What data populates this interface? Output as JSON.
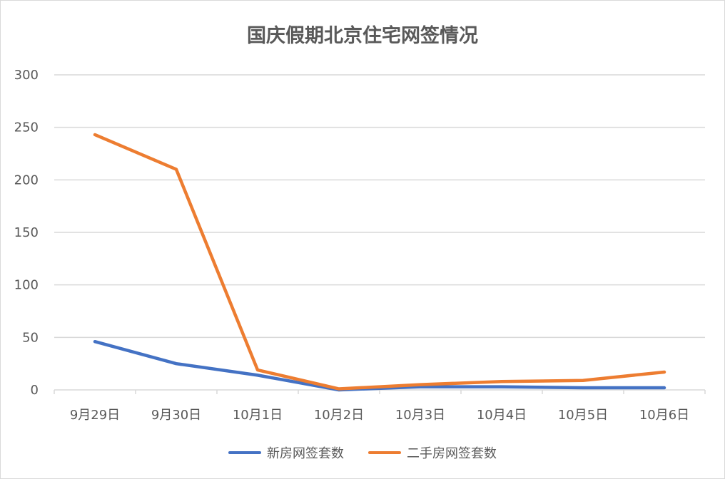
{
  "chart_data": {
    "type": "line",
    "title": "国庆假期北京住宅网签情况",
    "categories": [
      "9月29日",
      "9月30日",
      "10月1日",
      "10月2日",
      "10月3日",
      "10月4日",
      "10月5日",
      "10月6日"
    ],
    "series": [
      {
        "name": "新房网签套数",
        "values": [
          46,
          25,
          14,
          0,
          3,
          3,
          2,
          2
        ],
        "color": "#4472C4"
      },
      {
        "name": "二手房网签套数",
        "values": [
          243,
          210,
          19,
          1,
          5,
          8,
          9,
          17
        ],
        "color": "#ED7D31"
      }
    ],
    "ylim": [
      0,
      300
    ],
    "yticks": [
      0,
      50,
      100,
      150,
      200,
      250,
      300
    ],
    "grid": true,
    "legend": "bottom"
  }
}
